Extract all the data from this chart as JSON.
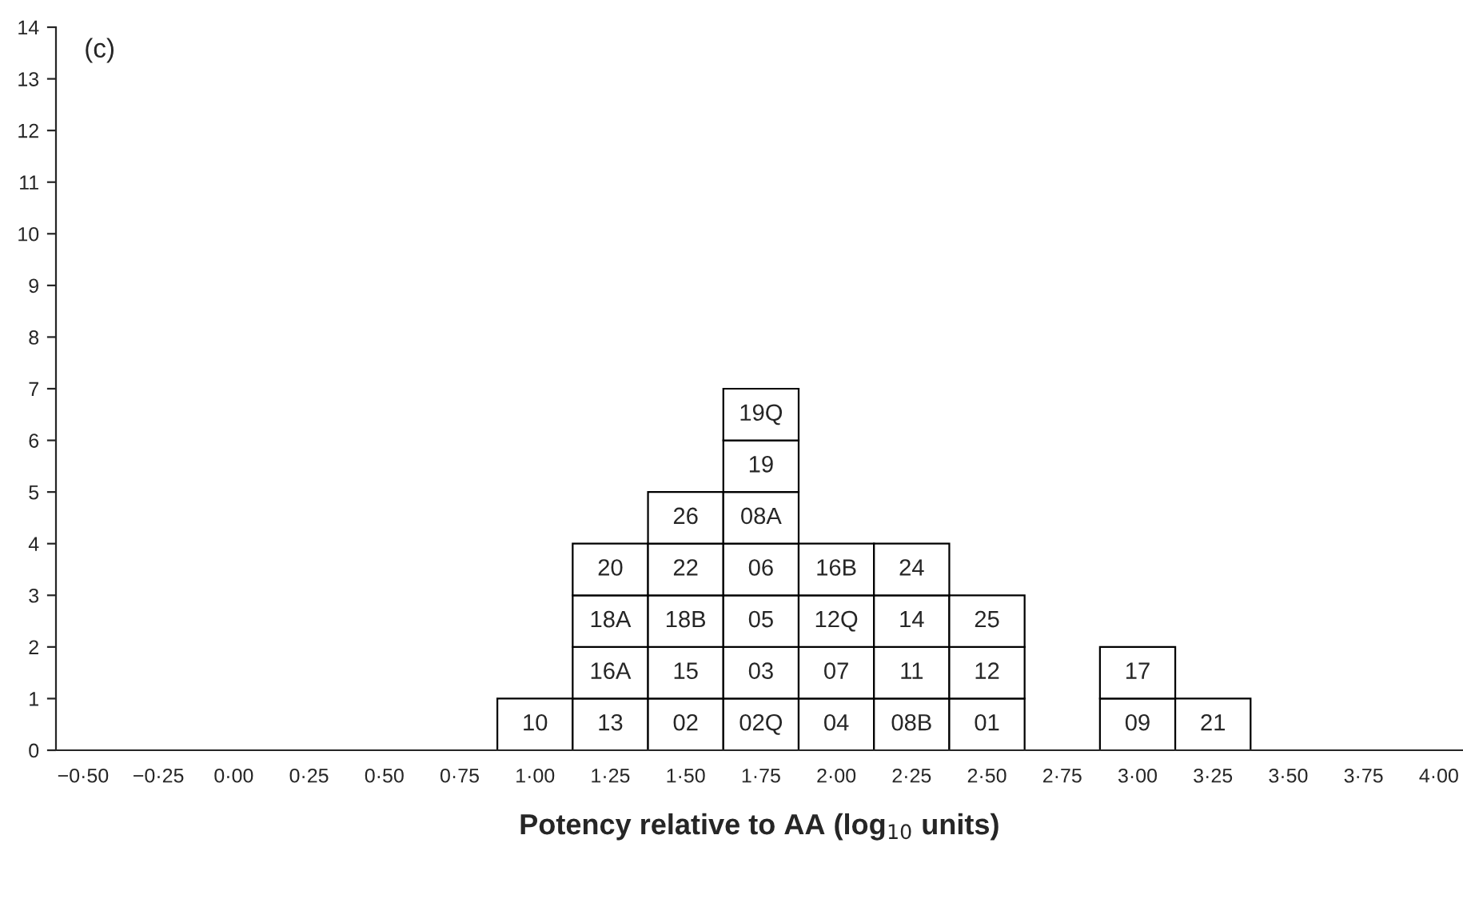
{
  "chart_data": {
    "type": "bar",
    "stacked": true,
    "xlabel": "Potency relative to AA (log$_{10}$ units)",
    "categories": [
      "−0·50",
      "−0·25",
      "0·00",
      "0·25",
      "0·50",
      "0·75",
      "1·00",
      "1·25",
      "1·50",
      "1·75",
      "2·00",
      "2·25",
      "2·50",
      "2·75",
      "3·00",
      "3·25",
      "3·50",
      "3·75",
      "4·00"
    ],
    "series": [
      {
        "color": "#ffffff",
        "values": [
          null,
          null,
          null,
          null,
          null,
          null,
          1,
          1,
          1,
          1,
          1,
          1,
          1,
          null,
          1,
          1,
          null,
          null,
          null
        ]
      },
      {
        "color": "#ffffff",
        "values": [
          null,
          null,
          null,
          null,
          null,
          null,
          null,
          1,
          1,
          1,
          1,
          1,
          1,
          null,
          1,
          null,
          null,
          null,
          null
        ]
      },
      {
        "color": "#ffffff",
        "values": [
          null,
          null,
          null,
          null,
          null,
          null,
          null,
          1,
          1,
          1,
          1,
          1,
          1,
          null,
          null,
          null,
          null,
          null,
          null
        ]
      },
      {
        "color": "#ffffff",
        "values": [
          null,
          null,
          null,
          null,
          null,
          null,
          null,
          1,
          1,
          1,
          1,
          1,
          null,
          null,
          null,
          null,
          null,
          null,
          null
        ]
      },
      {
        "color": "#ffffff",
        "values": [
          null,
          null,
          null,
          null,
          null,
          null,
          null,
          null,
          1,
          1,
          null,
          null,
          null,
          null,
          null,
          null,
          null,
          null,
          null
        ]
      },
      {
        "color": "#ffffff",
        "values": [
          null,
          null,
          null,
          null,
          null,
          null,
          null,
          null,
          null,
          1,
          null,
          null,
          null,
          null,
          null,
          null,
          null,
          null,
          null
        ]
      },
      {
        "color": "#ffffff",
        "values": [
          null,
          null,
          null,
          null,
          null,
          null,
          null,
          null,
          null,
          1,
          null,
          null,
          null,
          null,
          null,
          null,
          null,
          null,
          null
        ]
      }
    ],
    "ylim": [
      0,
      14
    ],
    "yticks": [
      0,
      1,
      2,
      3,
      4,
      5,
      6,
      7,
      8,
      9,
      10,
      11,
      12,
      13,
      14
    ],
    "grid": false,
    "annotations": [
      "(c)",
      "10",
      "13",
      "02",
      "02Q",
      "04",
      "08B",
      "01",
      "09",
      "21",
      "16A",
      "15",
      "03",
      "07",
      "11",
      "12",
      "17",
      "18A",
      "18B",
      "05",
      "12Q",
      "14",
      "25",
      "20",
      "22",
      "06",
      "16B",
      "24",
      "26",
      "08A",
      "19",
      "19Q"
    ]
  }
}
